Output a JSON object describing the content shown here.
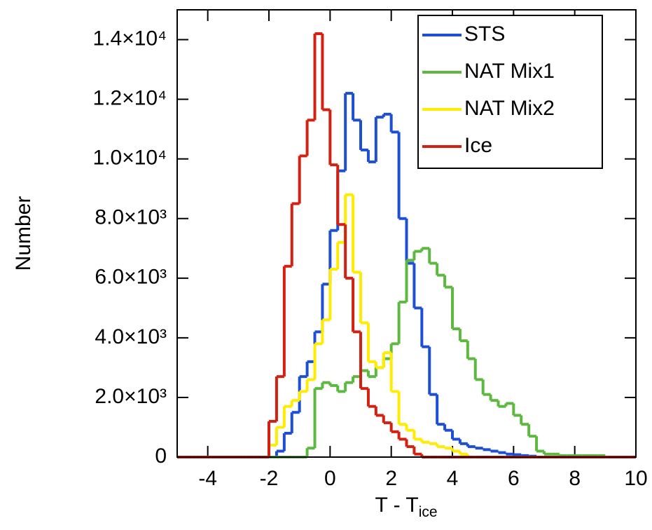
{
  "chart_data": {
    "type": "histogram",
    "ylabel": "Number",
    "xlabel": [
      "T - T",
      "ice"
    ],
    "bins": [
      -5,
      -4.75,
      -4.5,
      -4.25,
      -4,
      -3.75,
      -3.5,
      -3.25,
      -3,
      -2.75,
      -2.5,
      -2.25,
      -2,
      -1.75,
      -1.5,
      -1.25,
      -1,
      -0.75,
      -0.5,
      -0.25,
      0,
      0.25,
      0.5,
      0.75,
      1,
      1.25,
      1.5,
      1.75,
      2,
      2.25,
      2.5,
      2.75,
      3,
      3.25,
      3.5,
      3.75,
      4,
      4.25,
      4.5,
      4.75,
      5,
      5.25,
      5.5,
      5.75,
      6,
      6.25,
      6.5,
      6.75,
      7,
      7.25,
      7.5,
      7.75,
      8,
      8.25,
      8.5,
      8.75,
      9,
      9.25,
      9.5,
      9.75,
      10
    ],
    "series": [
      {
        "name": "STS",
        "color": "#1d4fd6",
        "values": [
          0,
          0,
          0,
          0,
          0,
          0,
          0,
          0,
          0,
          0,
          0,
          0,
          0,
          200,
          800,
          1500,
          2700,
          3200,
          4200,
          5800,
          7600,
          9600,
          12200,
          11300,
          10300,
          9900,
          11400,
          11500,
          10900,
          8000,
          6500,
          5000,
          3700,
          2100,
          1100,
          900,
          600,
          450,
          350,
          300,
          250,
          200,
          150,
          100,
          80,
          50,
          30,
          0,
          0,
          0,
          0,
          0,
          0,
          0,
          0,
          0,
          0,
          0,
          0,
          0
        ]
      },
      {
        "name": "NAT Mix1",
        "color": "#5cb83f",
        "values": [
          0,
          0,
          0,
          0,
          0,
          0,
          0,
          0,
          0,
          0,
          0,
          0,
          0,
          0,
          0,
          0,
          0,
          300,
          2300,
          2500,
          2400,
          2200,
          2500,
          2700,
          2900,
          2700,
          3000,
          3300,
          3800,
          5200,
          6600,
          6900,
          7000,
          6500,
          6100,
          5700,
          4300,
          3900,
          3300,
          2600,
          2100,
          1900,
          1700,
          1800,
          1400,
          1100,
          700,
          200,
          100,
          100,
          50,
          50,
          50,
          50,
          50,
          50,
          0,
          0,
          0,
          0
        ]
      },
      {
        "name": "NAT Mix2",
        "color": "#ffec00",
        "values": [
          0,
          0,
          0,
          0,
          0,
          0,
          0,
          0,
          0,
          0,
          0,
          0,
          400,
          1000,
          1700,
          1900,
          2200,
          2600,
          3800,
          4600,
          6300,
          7200,
          8800,
          6200,
          4500,
          3200,
          3000,
          3500,
          2200,
          1100,
          900,
          600,
          500,
          450,
          350,
          300,
          200,
          100,
          0,
          0,
          0,
          0,
          0,
          0,
          0,
          0,
          0,
          0,
          0,
          0,
          0,
          0,
          0,
          0,
          0,
          0,
          0,
          0,
          0,
          0
        ]
      },
      {
        "name": "Ice",
        "color": "#d42010",
        "values": [
          0,
          0,
          0,
          0,
          0,
          0,
          0,
          0,
          0,
          0,
          0,
          0,
          1200,
          2700,
          6400,
          8500,
          10100,
          11300,
          14200,
          11650,
          9800,
          7800,
          6000,
          4200,
          2300,
          1700,
          1400,
          1150,
          850,
          600,
          350,
          100,
          0,
          0,
          0,
          0,
          0,
          0,
          0,
          0,
          0,
          0,
          0,
          0,
          0,
          0,
          0,
          0,
          0,
          0,
          0,
          0,
          0,
          0,
          0,
          0,
          0,
          0,
          0,
          0
        ]
      }
    ],
    "xlim": [
      -5,
      10
    ],
    "xticks": [
      -4,
      -2,
      0,
      2,
      4,
      6,
      8,
      10
    ],
    "ylim": [
      0,
      15000
    ],
    "yticks": [
      0,
      {
        "value": 2000,
        "label": "2.0×10³"
      },
      {
        "value": 4000,
        "label": "4.0×10³"
      },
      {
        "value": 6000,
        "label": "6.0×10³"
      },
      {
        "value": 8000,
        "label": "8.0×10³"
      },
      {
        "value": 10000,
        "label": "1.0×10⁴"
      },
      {
        "value": 12000,
        "label": "1.2×10⁴"
      },
      {
        "value": 14000,
        "label": "1.4×10⁴"
      }
    ],
    "legend": "upper right"
  }
}
